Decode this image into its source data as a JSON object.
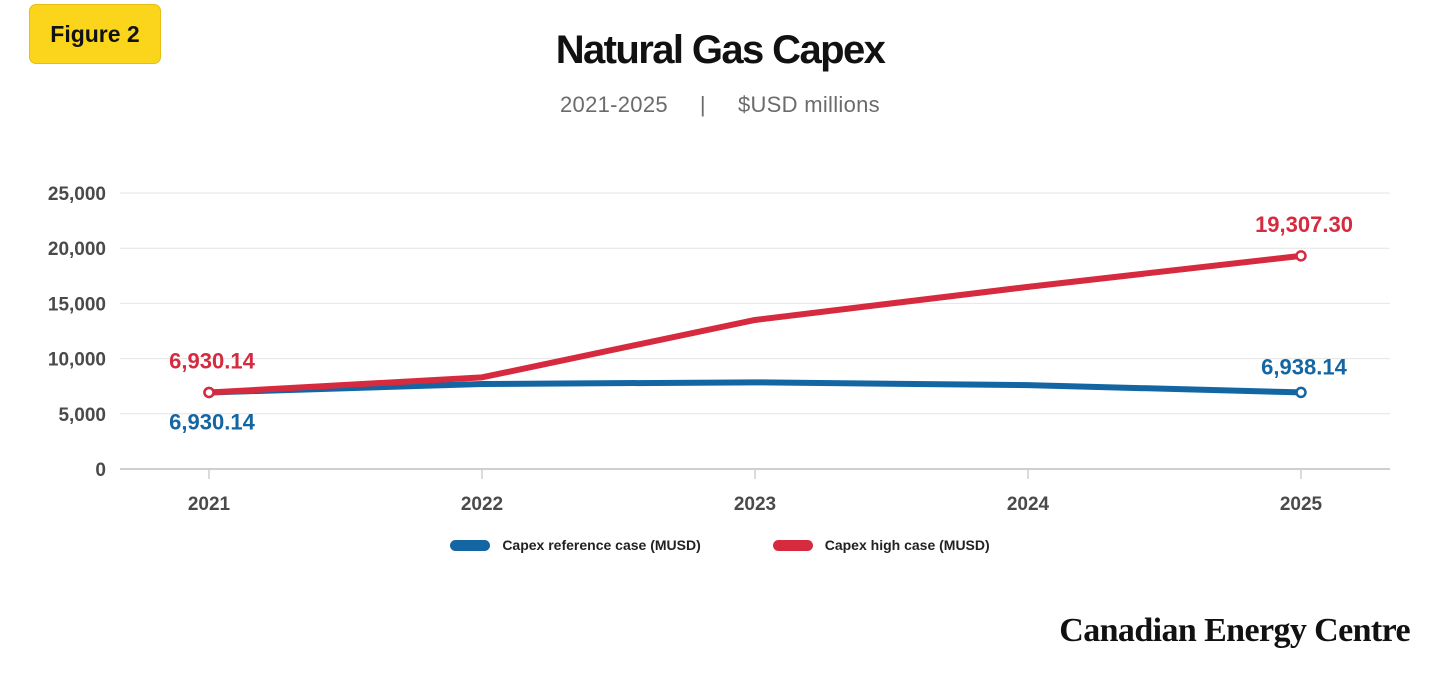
{
  "badge": {
    "label": "Figure 2"
  },
  "header": {
    "title": "Natural Gas Capex",
    "subtitle_range": "2021-2025",
    "subtitle_separator": "|",
    "subtitle_units": "$USD millions"
  },
  "brand": {
    "name": "Canadian Energy Centre"
  },
  "colors": {
    "reference": "#1466a3",
    "high": "#d62a3f",
    "badge": "#fbd41c"
  },
  "chart_data": {
    "type": "line",
    "title": "Natural Gas Capex",
    "subtitle": "2021-2025 | $USD millions",
    "x": [
      "2021",
      "2022",
      "2023",
      "2024",
      "2025"
    ],
    "ylim": [
      0,
      25000
    ],
    "yticks": [
      0,
      5000,
      10000,
      15000,
      20000,
      25000
    ],
    "ytick_labels": [
      "0",
      "5,000",
      "10,000",
      "15,000",
      "20,000",
      "25,000"
    ],
    "grid": true,
    "legend_position": "bottom",
    "series": [
      {
        "name": "Capex reference case (MUSD)",
        "color": "#1466a3",
        "values": [
          6930.14,
          7700,
          7850,
          7600,
          6938.14
        ]
      },
      {
        "name": "Capex high case (MUSD)",
        "color": "#d62a3f",
        "values": [
          6930.14,
          8300,
          13500,
          16500,
          19307.3
        ]
      }
    ],
    "annotations": [
      {
        "series": "Capex high case (MUSD)",
        "x": "2021",
        "text": "6,930.14"
      },
      {
        "series": "Capex reference case (MUSD)",
        "x": "2021",
        "text": "6,930.14"
      },
      {
        "series": "Capex high case (MUSD)",
        "x": "2025",
        "text": "19,307.30"
      },
      {
        "series": "Capex reference case (MUSD)",
        "x": "2025",
        "text": "6,938.14"
      }
    ]
  }
}
